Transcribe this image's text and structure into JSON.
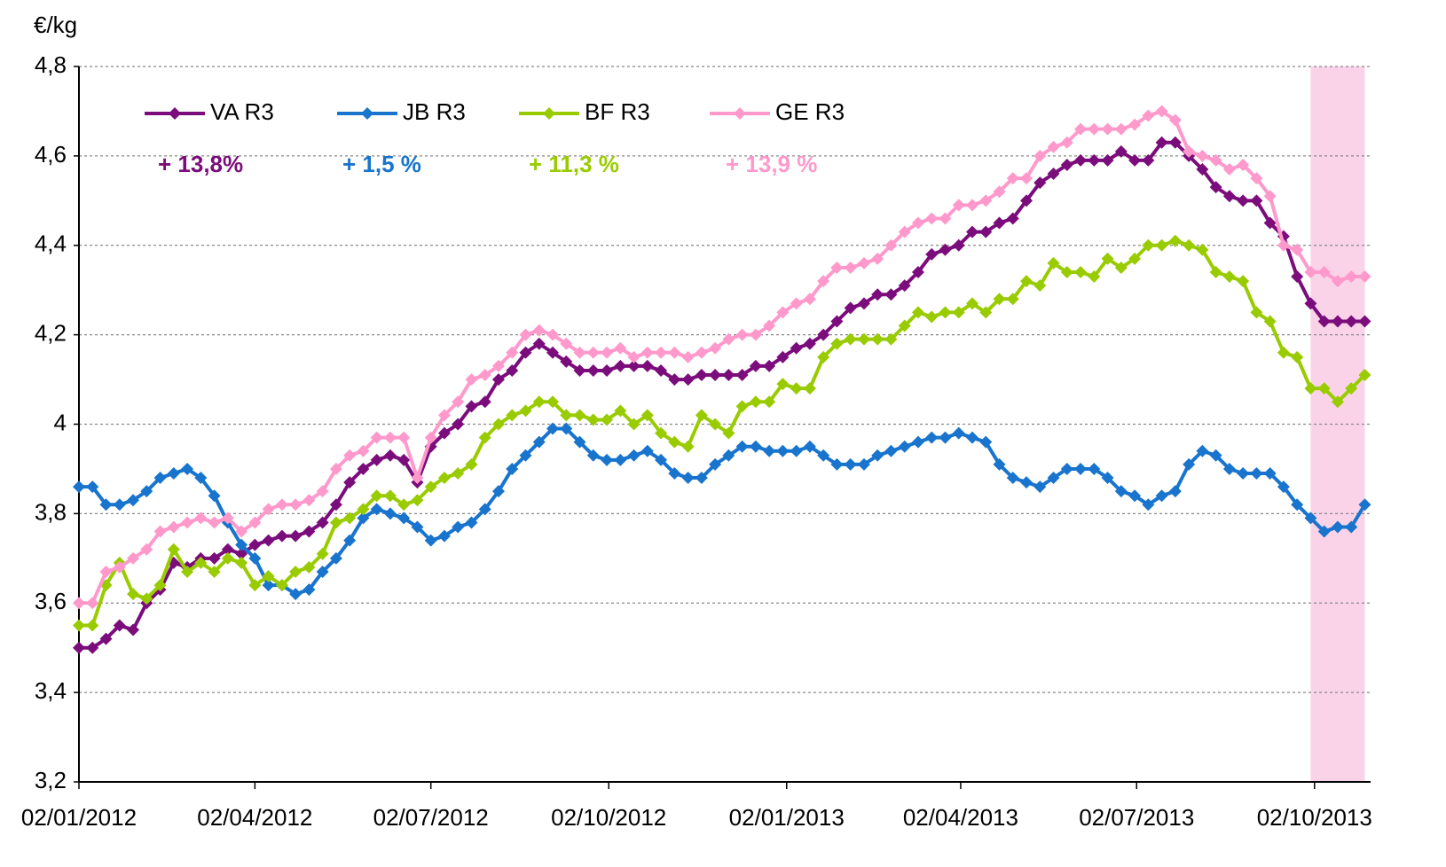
{
  "chart_data": {
    "type": "line",
    "y_label": "€/kg",
    "x": [
      "2012-01-02",
      "2012-01-09",
      "2012-01-16",
      "2012-01-23",
      "2012-01-30",
      "2012-02-06",
      "2012-02-13",
      "2012-02-20",
      "2012-02-27",
      "2012-03-05",
      "2012-03-12",
      "2012-03-19",
      "2012-03-26",
      "2012-04-02",
      "2012-04-09",
      "2012-04-16",
      "2012-04-23",
      "2012-04-30",
      "2012-05-07",
      "2012-05-14",
      "2012-05-21",
      "2012-05-28",
      "2012-06-04",
      "2012-06-11",
      "2012-06-18",
      "2012-06-25",
      "2012-07-02",
      "2012-07-09",
      "2012-07-16",
      "2012-07-23",
      "2012-07-30",
      "2012-08-06",
      "2012-08-13",
      "2012-08-20",
      "2012-08-27",
      "2012-09-03",
      "2012-09-10",
      "2012-09-17",
      "2012-09-24",
      "2012-10-01",
      "2012-10-08",
      "2012-10-15",
      "2012-10-22",
      "2012-10-29",
      "2012-11-05",
      "2012-11-12",
      "2012-11-19",
      "2012-11-26",
      "2012-12-03",
      "2012-12-10",
      "2012-12-17",
      "2012-12-24",
      "2012-12-31",
      "2013-01-07",
      "2013-01-14",
      "2013-01-21",
      "2013-01-28",
      "2013-02-04",
      "2013-02-11",
      "2013-02-18",
      "2013-02-25",
      "2013-03-04",
      "2013-03-11",
      "2013-03-18",
      "2013-03-25",
      "2013-04-01",
      "2013-04-08",
      "2013-04-15",
      "2013-04-22",
      "2013-04-29",
      "2013-05-06",
      "2013-05-13",
      "2013-05-20",
      "2013-05-27",
      "2013-06-03",
      "2013-06-10",
      "2013-06-17",
      "2013-06-24",
      "2013-07-01",
      "2013-07-08",
      "2013-07-15",
      "2013-07-22",
      "2013-07-29",
      "2013-08-05",
      "2013-08-12",
      "2013-08-19",
      "2013-08-26",
      "2013-09-02",
      "2013-09-09",
      "2013-09-16",
      "2013-09-23",
      "2013-09-30",
      "2013-10-07",
      "2013-10-14",
      "2013-10-21",
      "2013-10-28"
    ],
    "series": [
      {
        "name": "VA R3",
        "color": "#7b0c7b",
        "values": [
          3.5,
          3.5,
          3.52,
          3.55,
          3.54,
          3.6,
          3.63,
          3.69,
          3.68,
          3.7,
          3.7,
          3.72,
          3.71,
          3.73,
          3.74,
          3.75,
          3.75,
          3.76,
          3.78,
          3.82,
          3.87,
          3.9,
          3.92,
          3.93,
          3.92,
          3.87,
          3.95,
          3.98,
          4.0,
          4.04,
          4.05,
          4.1,
          4.12,
          4.16,
          4.18,
          4.16,
          4.14,
          4.12,
          4.12,
          4.12,
          4.13,
          4.13,
          4.13,
          4.12,
          4.1,
          4.1,
          4.11,
          4.11,
          4.11,
          4.11,
          4.13,
          4.13,
          4.15,
          4.17,
          4.18,
          4.2,
          4.23,
          4.26,
          4.27,
          4.29,
          4.29,
          4.31,
          4.34,
          4.38,
          4.39,
          4.4,
          4.43,
          4.43,
          4.45,
          4.46,
          4.5,
          4.54,
          4.56,
          4.58,
          4.59,
          4.59,
          4.59,
          4.61,
          4.59,
          4.59,
          4.63,
          4.63,
          4.6,
          4.57,
          4.53,
          4.51,
          4.5,
          4.5,
          4.45,
          4.42,
          4.33,
          4.27,
          4.23,
          4.23,
          4.23,
          4.23
        ]
      },
      {
        "name": "JB R3",
        "color": "#1874cd",
        "values": [
          3.86,
          3.86,
          3.82,
          3.82,
          3.83,
          3.85,
          3.88,
          3.89,
          3.9,
          3.88,
          3.84,
          3.78,
          3.73,
          3.7,
          3.64,
          3.64,
          3.62,
          3.63,
          3.67,
          3.7,
          3.74,
          3.79,
          3.81,
          3.8,
          3.79,
          3.77,
          3.74,
          3.75,
          3.77,
          3.78,
          3.81,
          3.85,
          3.9,
          3.93,
          3.96,
          3.99,
          3.99,
          3.96,
          3.93,
          3.92,
          3.92,
          3.93,
          3.94,
          3.92,
          3.89,
          3.88,
          3.88,
          3.91,
          3.93,
          3.95,
          3.95,
          3.94,
          3.94,
          3.94,
          3.95,
          3.93,
          3.91,
          3.91,
          3.91,
          3.93,
          3.94,
          3.95,
          3.96,
          3.97,
          3.97,
          3.98,
          3.97,
          3.96,
          3.91,
          3.88,
          3.87,
          3.86,
          3.88,
          3.9,
          3.9,
          3.9,
          3.88,
          3.85,
          3.84,
          3.82,
          3.84,
          3.85,
          3.91,
          3.94,
          3.93,
          3.9,
          3.89,
          3.89,
          3.89,
          3.86,
          3.82,
          3.79,
          3.76,
          3.77,
          3.77,
          3.82
        ]
      },
      {
        "name": "BF R3",
        "color": "#99cc00",
        "values": [
          3.55,
          3.55,
          3.64,
          3.69,
          3.62,
          3.61,
          3.64,
          3.72,
          3.67,
          3.69,
          3.67,
          3.7,
          3.69,
          3.64,
          3.66,
          3.64,
          3.67,
          3.68,
          3.71,
          3.78,
          3.79,
          3.81,
          3.84,
          3.84,
          3.82,
          3.83,
          3.86,
          3.88,
          3.89,
          3.91,
          3.97,
          4.0,
          4.02,
          4.03,
          4.05,
          4.05,
          4.02,
          4.02,
          4.01,
          4.01,
          4.03,
          4.0,
          4.02,
          3.98,
          3.96,
          3.95,
          4.02,
          4.0,
          3.98,
          4.04,
          4.05,
          4.05,
          4.09,
          4.08,
          4.08,
          4.15,
          4.18,
          4.19,
          4.19,
          4.19,
          4.19,
          4.22,
          4.25,
          4.24,
          4.25,
          4.25,
          4.27,
          4.25,
          4.28,
          4.28,
          4.32,
          4.31,
          4.36,
          4.34,
          4.34,
          4.33,
          4.37,
          4.35,
          4.37,
          4.4,
          4.4,
          4.41,
          4.4,
          4.39,
          4.34,
          4.33,
          4.32,
          4.25,
          4.23,
          4.16,
          4.15,
          4.08,
          4.08,
          4.05,
          4.08,
          4.11
        ]
      },
      {
        "name": "GE R3",
        "color": "#ff99cc",
        "values": [
          3.6,
          3.6,
          3.67,
          3.68,
          3.7,
          3.72,
          3.76,
          3.77,
          3.78,
          3.79,
          3.78,
          3.79,
          3.76,
          3.78,
          3.81,
          3.82,
          3.82,
          3.83,
          3.85,
          3.9,
          3.93,
          3.94,
          3.97,
          3.97,
          3.97,
          3.88,
          3.97,
          4.02,
          4.05,
          4.1,
          4.11,
          4.13,
          4.16,
          4.2,
          4.21,
          4.2,
          4.18,
          4.16,
          4.16,
          4.16,
          4.17,
          4.15,
          4.16,
          4.16,
          4.16,
          4.15,
          4.16,
          4.17,
          4.19,
          4.2,
          4.2,
          4.22,
          4.25,
          4.27,
          4.28,
          4.32,
          4.35,
          4.35,
          4.36,
          4.37,
          4.4,
          4.43,
          4.45,
          4.46,
          4.46,
          4.49,
          4.49,
          4.5,
          4.52,
          4.55,
          4.55,
          4.6,
          4.62,
          4.63,
          4.66,
          4.66,
          4.66,
          4.66,
          4.67,
          4.69,
          4.7,
          4.68,
          4.61,
          4.6,
          4.59,
          4.57,
          4.58,
          4.55,
          4.51,
          4.4,
          4.39,
          4.34,
          4.34,
          4.32,
          4.33,
          4.33
        ]
      }
    ],
    "annotations": [
      {
        "text": "+ 13,8%",
        "color": "#7b0c7b"
      },
      {
        "text": "+ 1,5 %",
        "color": "#1874cd"
      },
      {
        "text": "+ 11,3 %",
        "color": "#99cc00"
      },
      {
        "text": "+ 13,9 %",
        "color": "#ff99cc"
      }
    ],
    "xlim": [
      "2012-01-02",
      "2013-10-31"
    ],
    "xticks": [
      {
        "value": "2012-01-02",
        "label": "02/01/2012"
      },
      {
        "value": "2012-04-02",
        "label": "02/04/2012"
      },
      {
        "value": "2012-07-02",
        "label": "02/07/2012"
      },
      {
        "value": "2012-10-02",
        "label": "02/10/2012"
      },
      {
        "value": "2013-01-02",
        "label": "02/01/2013"
      },
      {
        "value": "2013-04-02",
        "label": "02/04/2013"
      },
      {
        "value": "2013-07-02",
        "label": "02/07/2013"
      },
      {
        "value": "2013-10-02",
        "label": "02/10/2013"
      }
    ],
    "ylim": [
      3.2,
      4.8
    ],
    "yticks": [
      {
        "value": 3.2,
        "label": "3,2"
      },
      {
        "value": 3.4,
        "label": "3,4"
      },
      {
        "value": 3.6,
        "label": "3,6"
      },
      {
        "value": 3.8,
        "label": "3,8"
      },
      4,
      {
        "value": 4.2,
        "label": "4,2"
      },
      {
        "value": 4.4,
        "label": "4,4"
      },
      {
        "value": 4.6,
        "label": "4,6"
      },
      {
        "value": 4.8,
        "label": "4,8"
      }
    ],
    "grid": true,
    "legend": "top-left",
    "highlight": {
      "x": [
        "2013-09-30",
        "2013-10-28"
      ],
      "color": "#fbd3e9"
    }
  }
}
